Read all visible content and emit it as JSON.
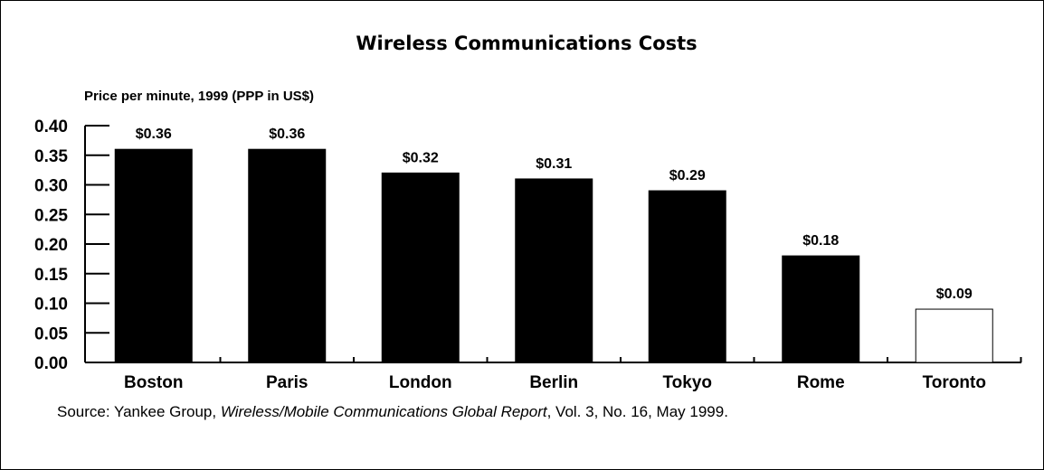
{
  "chart_data": {
    "type": "bar",
    "title": "Wireless Communications Costs",
    "ylabel": "Price per minute, 1999 (PPP in US$)",
    "xlabel": "",
    "categories": [
      "Boston",
      "Paris",
      "London",
      "Berlin",
      "Tokyo",
      "Rome",
      "Toronto"
    ],
    "values": [
      0.36,
      0.36,
      0.32,
      0.31,
      0.29,
      0.18,
      0.09
    ],
    "data_labels": [
      "$0.36",
      "$0.36",
      "$0.32",
      "$0.31",
      "$0.29",
      "$0.18",
      "$0.09"
    ],
    "bar_colors": [
      "#000000",
      "#000000",
      "#000000",
      "#000000",
      "#000000",
      "#000000",
      "#ffffff"
    ],
    "ylim": [
      0,
      0.4
    ],
    "yticks": [
      "0.00",
      "0.05",
      "0.10",
      "0.15",
      "0.20",
      "0.25",
      "0.30",
      "0.35",
      "0.40"
    ],
    "grid": false,
    "legend": "none"
  },
  "source": {
    "prefix": "Source: Yankee Group, ",
    "publication": "Wireless/Mobile Communications Global Report",
    "suffix": ", Vol. 3, No. 16, May 1999."
  }
}
